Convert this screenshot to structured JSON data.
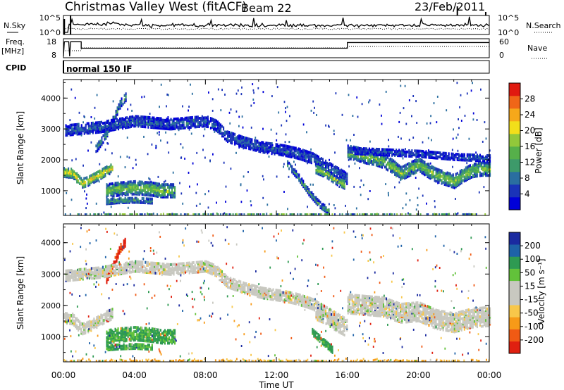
{
  "header": {
    "station": "Christmas Valley West (fitACF)",
    "beam": "Beam 22",
    "date": "23/Feb/2011"
  },
  "panels": {
    "nsky": {
      "label": "N.Sky",
      "ticks": [
        "10^5",
        "10^0"
      ],
      "right_label": "N.Search",
      "right_ticks": [
        "10^5",
        "10^0"
      ]
    },
    "freq": {
      "label": "Freq.",
      "unit": "[MHz]",
      "ticks": [
        "18",
        "8"
      ],
      "right_label": "Nave",
      "right_ticks": [
        "60",
        "0"
      ]
    },
    "cpid": {
      "label": "CPID",
      "mode": "normal 150 IF"
    }
  },
  "colorbars": {
    "power": {
      "title": "Power [dB]",
      "ticks": [
        "28",
        "24",
        "20",
        "16",
        "12",
        "8",
        "4"
      ],
      "colors": [
        "#0000d8",
        "#1a33b8",
        "#2a6ea0",
        "#3d9a6a",
        "#56b04a",
        "#92c83a",
        "#f2df1a",
        "#f6a81a",
        "#f06618",
        "#e01a10"
      ]
    },
    "velocity": {
      "title": "Velocity [m s⁻¹]",
      "ticks": [
        "200",
        "100",
        "50",
        "15",
        "-15",
        "-50",
        "-100",
        "-200"
      ],
      "colors": [
        "#e02010",
        "#f05a14",
        "#f79a18",
        "#f8c74a",
        "#c8c8c0",
        "#c8c8c0",
        "#62c23a",
        "#2e9a52",
        "#1e62a8",
        "#1a2aa0"
      ]
    }
  },
  "chart_data": [
    {
      "type": "heatmap",
      "name": "power",
      "title": "Christmas Valley West (fitACF)  Beam 22  23/Feb/2011",
      "xlabel": "Time UT",
      "ylabel": "Slant Range [km]",
      "xlim": [
        0,
        24
      ],
      "ylim": [
        200,
        4600
      ],
      "xticks": [
        "00:00",
        "04:00",
        "08:00",
        "12:00",
        "16:00",
        "20:00",
        "00:00"
      ],
      "yticks": [
        1000,
        2000,
        3000,
        4000
      ],
      "zlabel": "Power [dB]",
      "zlim": [
        0,
        32
      ],
      "bands": [
        {
          "t": [
            0.0,
            0.5,
            1.0,
            1.3,
            1.8,
            2.4,
            2.8
          ],
          "y": [
            1650,
            1620,
            1300,
            1350,
            1500,
            1700,
            1800
          ],
          "w": 300,
          "p": 22
        },
        {
          "t": [
            1.8,
            2.4,
            2.9,
            3.2,
            3.5
          ],
          "y": [
            2400,
            2900,
            3500,
            3900,
            4100
          ],
          "w": 260,
          "p": 12
        },
        {
          "t": [
            0.1,
            1.0,
            2.0,
            3.0,
            4.0,
            5.0,
            6.0,
            7.0,
            8.0,
            8.6,
            9.2,
            10.2,
            11.2,
            12.4,
            13.2,
            14.0,
            14.6,
            15.2,
            15.8,
            16.0
          ],
          "y": [
            3000,
            3050,
            3100,
            3200,
            3300,
            3250,
            3200,
            3250,
            3300,
            3150,
            2800,
            2600,
            2450,
            2350,
            2250,
            2100,
            1900,
            1700,
            1500,
            1400
          ],
          "w": 320,
          "p": 7
        },
        {
          "t": [
            2.4,
            3.0,
            4.0,
            5.0,
            5.5,
            6.3
          ],
          "y": [
            1050,
            1100,
            1150,
            1100,
            1050,
            1050
          ],
          "w": 420,
          "p": 17
        },
        {
          "t": [
            2.4,
            3.0,
            4.0,
            5.0
          ],
          "y": [
            700,
            730,
            750,
            720
          ],
          "w": 160,
          "p": 13
        },
        {
          "t": [
            12.6,
            13.2,
            13.8,
            14.4,
            15.0
          ],
          "y": [
            1900,
            1500,
            1000,
            600,
            350
          ],
          "w": 180,
          "p": 13
        },
        {
          "t": [
            14.2,
            14.8,
            15.3,
            15.8
          ],
          "y": [
            1750,
            1600,
            1400,
            1250
          ],
          "w": 260,
          "p": 18
        },
        {
          "t": [
            16.0,
            16.5,
            17.0,
            17.5,
            18.0,
            18.5,
            19.0,
            19.5,
            20.0,
            20.5,
            21.0,
            21.5,
            22.0,
            22.5,
            23.0,
            23.5,
            24.0
          ],
          "y": [
            2300,
            2250,
            2150,
            2100,
            2000,
            1850,
            1600,
            1750,
            1900,
            1700,
            1550,
            1450,
            1350,
            1550,
            1700,
            1750,
            1750
          ],
          "w": 420,
          "p": 17
        },
        {
          "t": [
            16.0,
            18.0,
            20.0,
            22.0,
            24.0
          ],
          "y": [
            2350,
            2300,
            2250,
            2150,
            2100
          ],
          "w": 200,
          "p": 6
        }
      ],
      "ground_scatter_range": 240
    },
    {
      "type": "heatmap",
      "name": "velocity",
      "xlabel": "Time UT",
      "ylabel": "Slant Range [km]",
      "xlim": [
        0,
        24
      ],
      "ylim": [
        200,
        4600
      ],
      "xticks": [
        "00:00",
        "04:00",
        "08:00",
        "12:00",
        "16:00",
        "20:00",
        "00:00"
      ],
      "yticks": [
        1000,
        2000,
        3000,
        4000
      ],
      "zlabel": "Velocity [m s⁻¹]",
      "zlim": [
        -250,
        250
      ],
      "bands": [
        {
          "t": [
            0.0,
            0.5,
            1.0,
            1.3,
            1.8,
            2.4,
            2.8
          ],
          "y": [
            1650,
            1620,
            1300,
            1350,
            1500,
            1700,
            1800
          ],
          "w": 340,
          "v": 0
        },
        {
          "t": [
            2.4,
            2.9,
            3.2,
            3.5
          ],
          "y": [
            2900,
            3500,
            3900,
            4100
          ],
          "w": 260,
          "v": -180
        },
        {
          "t": [
            0.1,
            1.0,
            2.0,
            3.0,
            4.0,
            5.0,
            6.0,
            7.0,
            8.0,
            8.6,
            9.2,
            10.2,
            11.2,
            12.4,
            13.2,
            14.0,
            14.6,
            15.2,
            15.8,
            16.0
          ],
          "y": [
            3000,
            3050,
            3100,
            3200,
            3300,
            3250,
            3200,
            3250,
            3300,
            3150,
            2800,
            2600,
            2450,
            2350,
            2250,
            2100,
            1900,
            1700,
            1500,
            1400
          ],
          "w": 340,
          "v": 0
        },
        {
          "t": [
            2.4,
            3.0,
            4.0,
            5.0,
            5.5,
            6.3
          ],
          "y": [
            1050,
            1100,
            1150,
            1100,
            1050,
            1050
          ],
          "w": 420,
          "v": 35
        },
        {
          "t": [
            2.4,
            3.0,
            4.0,
            5.0
          ],
          "y": [
            700,
            730,
            750,
            720
          ],
          "w": 160,
          "v": 35
        },
        {
          "t": [
            14.0,
            14.6,
            15.2
          ],
          "y": [
            1200,
            900,
            600
          ],
          "w": 200,
          "v": 40
        },
        {
          "t": [
            14.2,
            14.8,
            15.3,
            15.8
          ],
          "y": [
            1750,
            1600,
            1400,
            1250
          ],
          "w": 300,
          "v": 0
        },
        {
          "t": [
            16.0,
            17.0,
            18.0,
            19.0,
            20.0,
            21.0,
            22.0,
            23.0,
            24.0
          ],
          "y": [
            2100,
            2050,
            2000,
            1800,
            1850,
            1600,
            1500,
            1650,
            1700
          ],
          "w": 600,
          "v": 0
        }
      ],
      "ground_scatter_range": 260
    }
  ]
}
